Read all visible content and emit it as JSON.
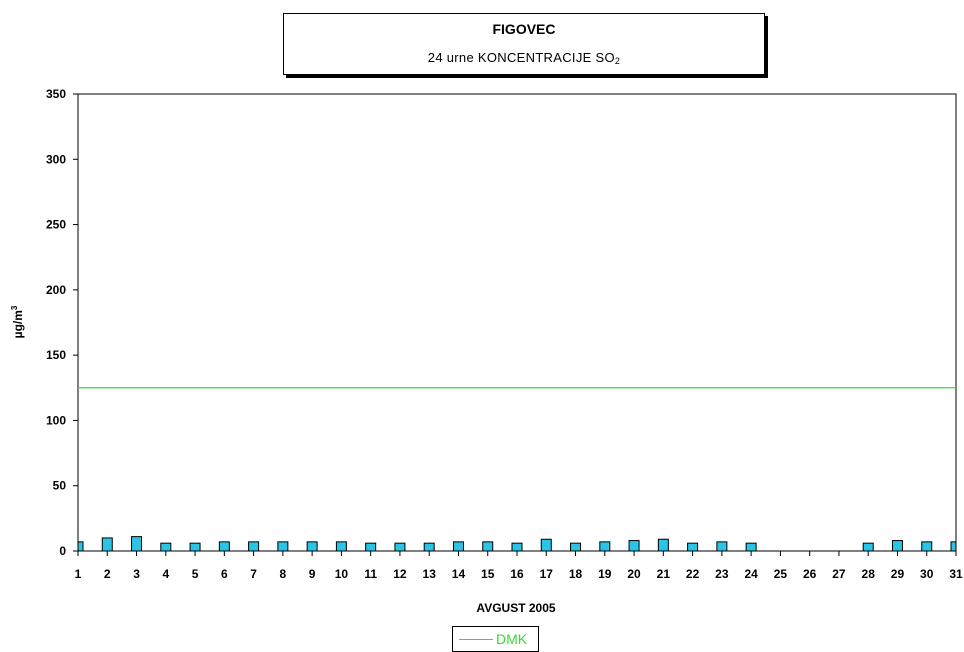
{
  "chart_data": {
    "type": "bar",
    "title": "FIGOVEC",
    "subtitle_main": "24 urne KONCENTRACIJE SO",
    "subtitle_sub": "2",
    "xlabel": "AVGUST 2005",
    "ylabel": "µg/m",
    "ylabel_sup": "3",
    "ylim": [
      0,
      350
    ],
    "yticks": [
      0,
      50,
      100,
      150,
      200,
      250,
      300,
      350
    ],
    "categories": [
      "1",
      "2",
      "3",
      "4",
      "5",
      "6",
      "7",
      "8",
      "9",
      "10",
      "11",
      "12",
      "13",
      "14",
      "15",
      "16",
      "17",
      "18",
      "19",
      "20",
      "21",
      "22",
      "23",
      "24",
      "25",
      "26",
      "27",
      "28",
      "29",
      "30",
      "31"
    ],
    "series": [
      {
        "values": [
          7,
          10,
          11,
          6,
          6,
          7,
          7,
          7,
          7,
          7,
          6,
          6,
          6,
          7,
          7,
          6,
          9,
          6,
          7,
          8,
          9,
          6,
          7,
          6,
          null,
          null,
          null,
          6,
          8,
          7,
          7
        ],
        "color": "#29c4e6"
      }
    ],
    "reference_lines": [
      {
        "name": "DMK",
        "value": 125,
        "color": "#33dd33"
      }
    ],
    "grid": false,
    "legend_position": "bottom-center"
  }
}
